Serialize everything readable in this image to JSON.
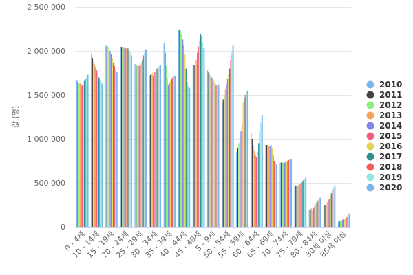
{
  "chart_data": {
    "type": "bar",
    "title": "",
    "xlabel": "",
    "ylabel": "값 (명)",
    "ylim": [
      0,
      2500000
    ],
    "yticks": [
      0,
      500000,
      1000000,
      1500000,
      2000000,
      2500000
    ],
    "ytick_labels": [
      "0",
      "500 000",
      "1 000 000",
      "1 500 000",
      "2 000 000",
      "2 500 000"
    ],
    "grid": true,
    "legend_position": "right",
    "categories": [
      "0 - 4세",
      "10 - 14세",
      "15 - 19세",
      "20 - 24세",
      "25 - 29세",
      "30 - 34세",
      "35 - 39세",
      "40 - 44세",
      "45 - 49세",
      "5 - 9세",
      "50 - 54세",
      "55 - 59세",
      "60 - 64세",
      "65 - 69세",
      "70 - 74세",
      "75 - 79세",
      "80 - 84세",
      "80세 이상",
      "85세 이상"
    ],
    "series": [
      {
        "name": "2010",
        "color": "#7cb5ec",
        "values": [
          1670000,
          1970000,
          2060000,
          2040000,
          1850000,
          1720000,
          2090000,
          2240000,
          1830000,
          1780000,
          1410000,
          850000,
          1070000,
          930000,
          730000,
          470000,
          190000,
          240000,
          60000
        ]
      },
      {
        "name": "2011",
        "color": "#434348",
        "values": [
          1650000,
          1920000,
          2055000,
          2040000,
          1840000,
          1730000,
          1980000,
          2235000,
          1840000,
          1760000,
          1450000,
          900000,
          1000000,
          930000,
          730000,
          470000,
          200000,
          250000,
          60000
        ]
      },
      {
        "name": "2012",
        "color": "#90ed7d",
        "values": [
          1640000,
          1890000,
          2050000,
          2035000,
          1830000,
          1740000,
          1830000,
          2230000,
          1830000,
          1740000,
          1500000,
          950000,
          930000,
          930000,
          730000,
          470000,
          210000,
          240000,
          70000
        ]
      },
      {
        "name": "2013",
        "color": "#f7a35c",
        "values": [
          1630000,
          1850000,
          2020000,
          2035000,
          1830000,
          1750000,
          1690000,
          2190000,
          1900000,
          1720000,
          1560000,
          1020000,
          860000,
          920000,
          730000,
          470000,
          190000,
          280000,
          75000
        ]
      },
      {
        "name": "2014",
        "color": "#8085e9",
        "values": [
          1620000,
          1820000,
          2000000,
          2035000,
          1830000,
          1720000,
          1610000,
          2130000,
          1980000,
          1700000,
          1620000,
          1090000,
          810000,
          920000,
          730000,
          480000,
          220000,
          300000,
          80000
        ]
      },
      {
        "name": "2015",
        "color": "#f15c80",
        "values": [
          1610000,
          1780000,
          1960000,
          2030000,
          1840000,
          1760000,
          1640000,
          2070000,
          2050000,
          1680000,
          1680000,
          1160000,
          790000,
          930000,
          740000,
          490000,
          240000,
          320000,
          85000
        ]
      },
      {
        "name": "2016",
        "color": "#e4d354",
        "values": [
          1600000,
          1750000,
          1920000,
          2032000,
          1870000,
          1780000,
          1660000,
          1960000,
          2120000,
          1660000,
          1740000,
          1420000,
          850000,
          900000,
          740000,
          500000,
          260000,
          350000,
          90000
        ]
      },
      {
        "name": "2017",
        "color": "#2b908f",
        "values": [
          1660000,
          1700000,
          1870000,
          2030000,
          1900000,
          1800000,
          1680000,
          1800000,
          2190000,
          1640000,
          1800000,
          1460000,
          950000,
          810000,
          750000,
          510000,
          280000,
          380000,
          95000
        ]
      },
      {
        "name": "2018",
        "color": "#f45b5b",
        "values": [
          1680000,
          1680000,
          1830000,
          2020000,
          1950000,
          1810000,
          1700000,
          1650000,
          2170000,
          1610000,
          1900000,
          1500000,
          1080000,
          750000,
          760000,
          530000,
          300000,
          410000,
          110000
        ]
      },
      {
        "name": "2019",
        "color": "#91e8e1",
        "values": [
          1700000,
          1660000,
          1800000,
          1990000,
          1990000,
          1830000,
          1710000,
          1600000,
          2100000,
          1610000,
          1980000,
          1530000,
          1180000,
          730000,
          770000,
          540000,
          310000,
          440000,
          130000
        ]
      },
      {
        "name": "2020",
        "color": "#7cb5ec",
        "values": [
          1730000,
          1630000,
          1760000,
          1950000,
          2020000,
          1840000,
          1720000,
          1580000,
          2030000,
          1620000,
          2060000,
          1550000,
          1270000,
          710000,
          770000,
          560000,
          330000,
          470000,
          150000
        ]
      }
    ]
  }
}
